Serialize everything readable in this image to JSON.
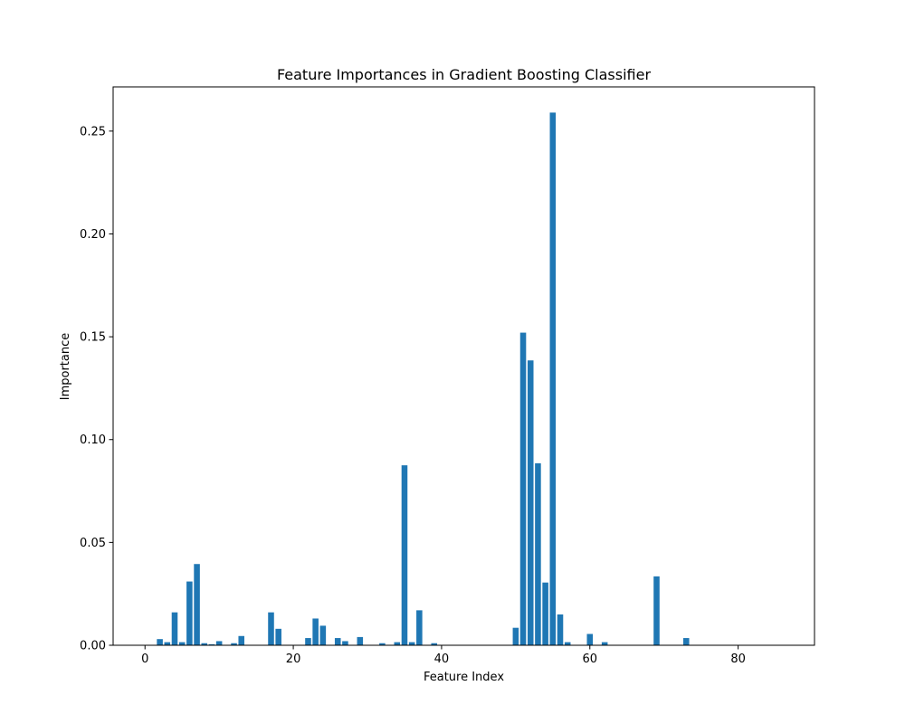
{
  "chart_data": {
    "type": "bar",
    "title": "Feature Importances in Gradient Boosting Classifier",
    "xlabel": "Feature Index",
    "ylabel": "Importance",
    "xlim": [
      -4.3,
      90.3
    ],
    "ylim": [
      0,
      0.2715
    ],
    "x_ticks": [
      0,
      20,
      40,
      60,
      80
    ],
    "y_ticks": [
      0.0,
      0.05,
      0.1,
      0.15,
      0.2,
      0.25
    ],
    "y_tick_labels": [
      "0.00",
      "0.05",
      "0.10",
      "0.15",
      "0.20",
      "0.25"
    ],
    "grid": false,
    "bar_color": "#1f77b4",
    "x": [
      0,
      1,
      2,
      3,
      4,
      5,
      6,
      7,
      8,
      9,
      10,
      11,
      12,
      13,
      14,
      15,
      16,
      17,
      18,
      19,
      20,
      21,
      22,
      23,
      24,
      25,
      26,
      27,
      28,
      29,
      30,
      31,
      32,
      33,
      34,
      35,
      36,
      37,
      38,
      39,
      40,
      41,
      42,
      43,
      44,
      45,
      46,
      47,
      48,
      49,
      50,
      51,
      52,
      53,
      54,
      55,
      56,
      57,
      58,
      59,
      60,
      61,
      62,
      63,
      64,
      65,
      66,
      67,
      68,
      69,
      70,
      71,
      72,
      73,
      74,
      75,
      76,
      77,
      78,
      79,
      80,
      81,
      82,
      83,
      84,
      85,
      86
    ],
    "values": [
      0,
      0,
      0.003,
      0.0015,
      0.016,
      0.0015,
      0.031,
      0.0395,
      0.001,
      0.0005,
      0.002,
      0,
      0.001,
      0.0045,
      0,
      0,
      0,
      0.016,
      0.008,
      0,
      0,
      0,
      0.0035,
      0.013,
      0.0095,
      0,
      0.0035,
      0.002,
      0,
      0.004,
      0,
      0,
      0.001,
      0,
      0.0015,
      0.0875,
      0.0015,
      0.017,
      0,
      0.001,
      0,
      0,
      0,
      0,
      0,
      0,
      0,
      0,
      0,
      0,
      0.0085,
      0.152,
      0.1385,
      0.0885,
      0.0305,
      0.259,
      0.015,
      0.0015,
      0,
      0,
      0.0055,
      0,
      0.0015,
      0,
      0,
      0,
      0,
      0,
      0,
      0.0335,
      0,
      0,
      0,
      0.0035,
      0,
      0,
      0,
      0,
      0,
      0,
      0,
      0,
      0,
      0,
      0,
      0,
      0
    ]
  }
}
